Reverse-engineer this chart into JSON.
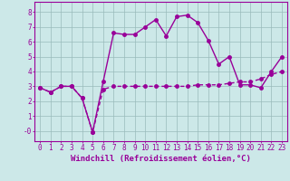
{
  "xlabel": "Windchill (Refroidissement éolien,°C)",
  "bg_color": "#cce8e8",
  "line_color": "#990099",
  "grid_color": "#99bbbb",
  "xlim": [
    -0.5,
    23.5
  ],
  "ylim": [
    -0.7,
    8.7
  ],
  "yticks": [
    0,
    1,
    2,
    3,
    4,
    5,
    6,
    7,
    8
  ],
  "ytick_labels": [
    "-0",
    "1",
    "2",
    "3",
    "4",
    "5",
    "6",
    "7",
    "8"
  ],
  "xticks": [
    0,
    1,
    2,
    3,
    4,
    5,
    6,
    7,
    8,
    9,
    10,
    11,
    12,
    13,
    14,
    15,
    16,
    17,
    18,
    19,
    20,
    21,
    22,
    23
  ],
  "line1_x": [
    0,
    1,
    2,
    3,
    4,
    5,
    6,
    7,
    8,
    9,
    10,
    11,
    12,
    13,
    14,
    15,
    16,
    17,
    18,
    19,
    20,
    21,
    22,
    23
  ],
  "line1_y": [
    2.9,
    2.6,
    3.0,
    3.0,
    2.2,
    -0.1,
    3.3,
    6.6,
    6.5,
    6.5,
    7.0,
    7.5,
    6.4,
    7.7,
    7.8,
    7.3,
    6.1,
    4.5,
    5.0,
    3.1,
    3.1,
    2.9,
    4.0,
    5.0
  ],
  "line2_x": [
    0,
    1,
    2,
    3,
    4,
    5,
    6,
    7,
    8,
    9,
    10,
    11,
    12,
    13,
    14,
    15,
    16,
    17,
    18,
    19,
    20,
    21,
    22,
    23
  ],
  "line2_y": [
    2.9,
    2.6,
    3.0,
    3.0,
    2.2,
    -0.1,
    2.8,
    3.0,
    3.0,
    3.0,
    3.0,
    3.0,
    3.0,
    3.0,
    3.0,
    3.1,
    3.1,
    3.1,
    3.2,
    3.3,
    3.3,
    3.5,
    3.8,
    4.0
  ],
  "marker_size": 2.5,
  "line_width": 1.0,
  "tick_fontsize": 5.5,
  "label_fontsize": 6.5
}
